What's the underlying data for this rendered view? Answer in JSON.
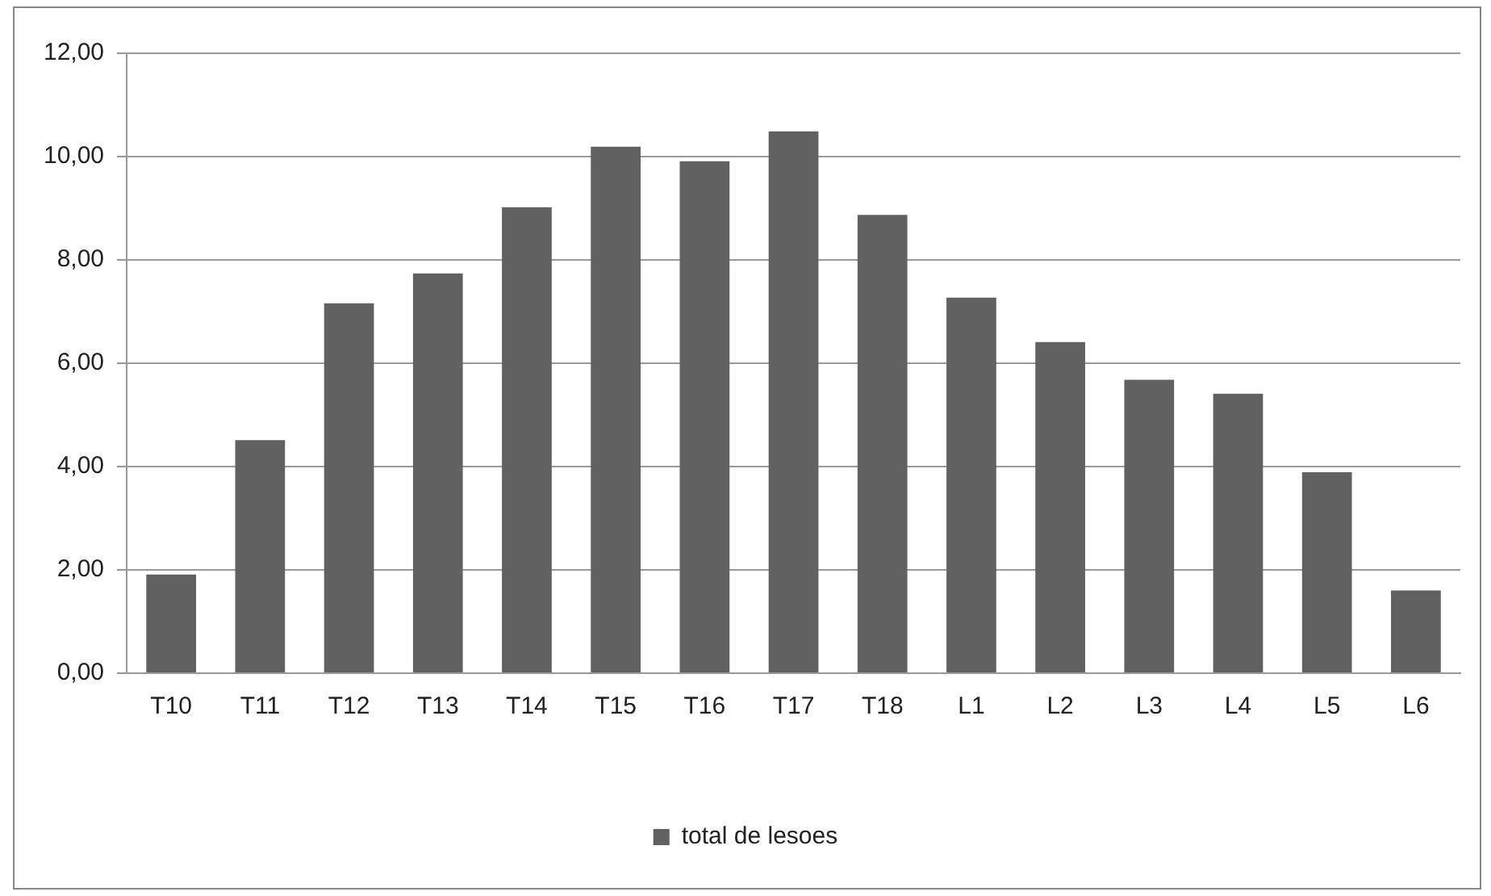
{
  "chart_data": {
    "type": "bar",
    "categories": [
      "T10",
      "T11",
      "T12",
      "T13",
      "T14",
      "T15",
      "T16",
      "T17",
      "T18",
      "L1",
      "L2",
      "L3",
      "L4",
      "L5",
      "L6"
    ],
    "series": [
      {
        "name": "total de lesoes",
        "color": "#616161",
        "values": [
          1.91,
          4.51,
          7.16,
          7.74,
          9.02,
          10.19,
          9.91,
          10.49,
          8.87,
          7.27,
          6.41,
          5.68,
          5.41,
          3.89,
          1.6
        ]
      }
    ],
    "ylim": [
      0,
      12
    ],
    "yticks": [
      {
        "value": 0,
        "label": "0,00"
      },
      {
        "value": 2,
        "label": "2,00"
      },
      {
        "value": 4,
        "label": "4,00"
      },
      {
        "value": 6,
        "label": "6,00"
      },
      {
        "value": 8,
        "label": "8,00"
      },
      {
        "value": 10,
        "label": "10,00"
      },
      {
        "value": 12,
        "label": "12,00"
      }
    ],
    "grid": "y",
    "legend": "bottom"
  }
}
